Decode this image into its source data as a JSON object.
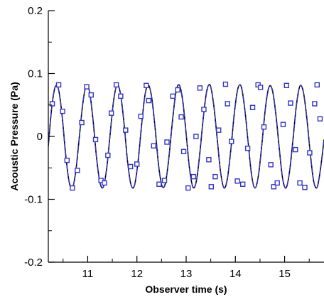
{
  "chart_data": {
    "type": "line",
    "title": "",
    "xlabel": "Observer time (s)",
    "ylabel": "Acoustic Pressure (Pa)",
    "xlim": [
      10.2,
      15.8
    ],
    "ylim": [
      -0.2,
      0.2
    ],
    "xticks": [
      11,
      12,
      13,
      14,
      15
    ],
    "xtick_labels": [
      "11",
      "12",
      "13",
      "14",
      "15"
    ],
    "yticks": [
      -0.2,
      -0.1,
      0,
      0.1,
      0.2
    ],
    "ytick_labels": [
      "-0.2",
      "-0.1",
      "0",
      "0.1",
      "0.2"
    ],
    "grid": false,
    "legend": false,
    "series": [
      {
        "style": "solid-line",
        "color": "#000000",
        "x": [
          10.2,
          10.27,
          10.34,
          10.41,
          10.48,
          10.55,
          10.62,
          10.69,
          10.76,
          10.83,
          10.9,
          10.97,
          11.04,
          11.11,
          11.18,
          11.25,
          11.32,
          11.39,
          11.46,
          11.53,
          11.6,
          11.67,
          11.74,
          11.81,
          11.88,
          11.95,
          12.02,
          12.09,
          12.16,
          12.23,
          12.3,
          12.37,
          12.44,
          12.51,
          12.58,
          12.65,
          12.72,
          12.79,
          12.86,
          12.93,
          13.0,
          13.07,
          13.14,
          13.21,
          13.28,
          13.35,
          13.42,
          13.49,
          13.56,
          13.63,
          13.7,
          13.77,
          13.84,
          13.91,
          13.98,
          14.05,
          14.12,
          14.19,
          14.26,
          14.33,
          14.4,
          14.47,
          14.54,
          14.61,
          14.68,
          14.75,
          14.82,
          14.89,
          14.96,
          15.03,
          15.1,
          15.17,
          15.24,
          15.31,
          15.38,
          15.45,
          15.52,
          15.59,
          15.66,
          15.73,
          15.8
        ],
        "y": [
          -0.015,
          0.046,
          0.079,
          0.074,
          0.033,
          -0.027,
          -0.071,
          -0.082,
          -0.054,
          -0.001,
          0.052,
          0.081,
          0.07,
          0.025,
          -0.034,
          -0.074,
          -0.08,
          -0.048,
          0.007,
          0.059,
          0.082,
          0.066,
          0.019,
          -0.04,
          -0.077,
          -0.078,
          -0.042,
          0.014,
          0.064,
          0.082,
          0.062,
          0.013,
          -0.046,
          -0.079,
          -0.074,
          -0.033,
          0.023,
          0.069,
          0.082,
          0.057,
          0.004,
          -0.052,
          -0.081,
          -0.07,
          -0.025,
          0.031,
          0.073,
          0.081,
          0.05,
          -0.003,
          -0.057,
          -0.082,
          -0.066,
          -0.019,
          0.038,
          0.076,
          0.079,
          0.044,
          -0.01,
          -0.062,
          -0.082,
          -0.061,
          -0.011,
          0.045,
          0.078,
          0.074,
          0.037,
          -0.018,
          -0.067,
          -0.082,
          -0.056,
          -0.005,
          0.05,
          0.08,
          0.071,
          0.03,
          -0.026,
          -0.071,
          -0.081,
          -0.051,
          -0.005
        ]
      },
      {
        "style": "dashed-line-with-square-markers",
        "color": "#3333cc",
        "x": [
          10.2,
          10.27,
          10.34,
          10.41,
          10.48,
          10.55,
          10.62,
          10.69,
          10.76,
          10.83,
          10.9,
          10.97,
          11.04,
          11.11,
          11.18,
          11.25,
          11.32,
          11.39,
          11.46,
          11.53,
          11.6,
          11.67,
          11.74,
          11.81,
          11.88,
          11.95,
          12.02,
          12.09,
          12.16,
          12.23,
          12.3,
          12.37,
          12.44,
          12.51,
          12.58,
          12.65,
          12.72,
          12.79,
          12.86,
          12.93,
          13.0,
          13.07,
          13.14,
          13.21,
          13.28,
          13.35,
          13.42,
          13.49,
          13.56,
          13.63,
          13.7,
          13.77,
          13.84,
          13.91,
          13.98,
          14.05,
          14.12,
          14.19,
          14.26,
          14.33,
          14.4,
          14.47,
          14.54,
          14.61,
          14.68,
          14.75,
          14.82,
          14.89,
          14.96,
          15.03,
          15.1,
          15.17,
          15.24,
          15.31,
          15.38,
          15.45,
          15.52,
          15.59,
          15.66,
          15.73,
          15.8
        ],
        "y": [
          -0.015,
          0.046,
          0.079,
          0.074,
          0.033,
          -0.027,
          -0.071,
          -0.082,
          -0.054,
          -0.001,
          0.052,
          0.081,
          0.07,
          0.025,
          -0.034,
          -0.074,
          -0.08,
          -0.048,
          0.007,
          0.059,
          0.082,
          0.066,
          0.019,
          -0.04,
          -0.077,
          -0.078,
          -0.042,
          0.014,
          0.064,
          0.082,
          0.062,
          0.013,
          -0.046,
          -0.079,
          -0.074,
          -0.033,
          0.023,
          0.069,
          0.082,
          0.057,
          0.004,
          -0.052,
          -0.081,
          -0.07,
          -0.025,
          0.031,
          0.073,
          0.081,
          0.05,
          -0.003,
          -0.057,
          -0.082,
          -0.066,
          -0.019,
          0.038,
          0.076,
          0.079,
          0.044,
          -0.01,
          -0.062,
          -0.082,
          -0.061,
          -0.011,
          0.045,
          0.078,
          0.074,
          0.037,
          -0.018,
          -0.067,
          -0.082,
          -0.056,
          -0.005,
          0.05,
          0.08,
          0.071,
          0.03,
          -0.026,
          -0.071,
          -0.081,
          -0.051,
          -0.005
        ],
        "markers": {
          "x": [
            10.28,
            10.41,
            10.49,
            10.58,
            10.69,
            10.79,
            10.88,
            10.98,
            11.07,
            11.16,
            11.27,
            11.34,
            11.41,
            11.48,
            11.58,
            11.67,
            11.77,
            11.87,
            12.0,
            12.08,
            12.19,
            12.24,
            12.34,
            12.45,
            12.56,
            12.61,
            12.73,
            12.83,
            12.9,
            12.95,
            13.04,
            13.15,
            13.2,
            13.28,
            13.36,
            13.46,
            13.51,
            13.59,
            13.66,
            13.8,
            13.84,
            13.92,
            14.04,
            14.15,
            14.25,
            14.35,
            14.46,
            14.51,
            14.58,
            14.72,
            14.78,
            14.85,
            14.97,
            15.04,
            15.12,
            15.22,
            15.31,
            15.41,
            15.51,
            15.61,
            15.66,
            15.72
          ],
          "y": [
            0.052,
            0.082,
            0.04,
            -0.038,
            -0.082,
            -0.054,
            0.022,
            0.079,
            0.066,
            -0.005,
            -0.07,
            -0.074,
            -0.03,
            0.037,
            0.082,
            0.064,
            0.01,
            -0.048,
            -0.044,
            0.032,
            0.081,
            0.057,
            -0.015,
            -0.076,
            -0.07,
            -0.009,
            0.064,
            0.074,
            0.031,
            -0.024,
            -0.082,
            -0.064,
            0.0,
            0.077,
            0.043,
            -0.037,
            -0.08,
            -0.064,
            0.01,
            0.083,
            0.052,
            -0.008,
            -0.071,
            -0.076,
            -0.019,
            0.046,
            0.082,
            0.078,
            0.015,
            -0.045,
            -0.08,
            -0.074,
            0.019,
            0.081,
            0.053,
            -0.021,
            -0.074,
            -0.081,
            -0.026,
            0.052,
            0.082,
            0.028
          ]
        }
      }
    ]
  }
}
